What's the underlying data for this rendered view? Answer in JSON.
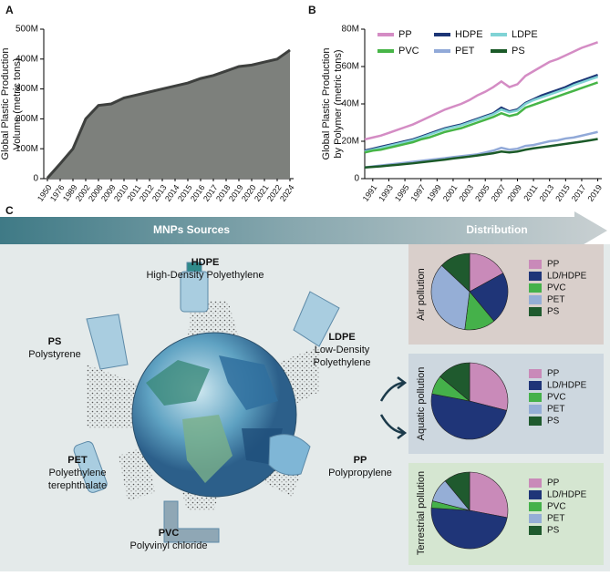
{
  "panels": [
    "A",
    "B",
    "C"
  ],
  "banner": {
    "sources": "MNPs Sources",
    "distribution": "Distribution"
  },
  "sources": [
    {
      "abbr": "HDPE",
      "name": [
        "High-Density Polyethylene"
      ]
    },
    {
      "abbr": "PS",
      "name": [
        "Polystyrene"
      ]
    },
    {
      "abbr": "LDPE",
      "name": [
        "Low-Density",
        "Polyethylene"
      ]
    },
    {
      "abbr": "PET",
      "name": [
        "Polyethylene",
        "terephthalate"
      ]
    },
    {
      "abbr": "PP",
      "name": [
        "Polypropylene"
      ]
    },
    {
      "abbr": "PVC",
      "name": [
        "Polyvinyl chloride"
      ]
    }
  ],
  "chart_data": [
    {
      "type": "area",
      "ylabel": [
        "Global Plastic Production",
        "Volume (metric tons)"
      ],
      "color": "#7d807c",
      "line_color": "#3e403e",
      "categories": [
        "1950",
        "1976",
        "1989",
        "2002",
        "2008",
        "2009",
        "2010",
        "2011",
        "2012",
        "2013",
        "2014",
        "2015",
        "2016",
        "2017",
        "2018",
        "2019",
        "2020",
        "2021",
        "2022",
        "2024"
      ],
      "values": [
        2000000,
        50000000,
        100000000,
        200000000,
        245000000,
        250000000,
        270000000,
        280000000,
        290000000,
        300000000,
        310000000,
        320000000,
        335000000,
        345000000,
        360000000,
        375000000,
        380000000,
        390000000,
        400000000,
        430000000
      ],
      "ylim": [
        0,
        500000000
      ],
      "yticks": [
        0,
        {
          "value": 100000000,
          "label": "100M"
        },
        {
          "value": 200000000,
          "label": "200M"
        },
        {
          "value": 300000000,
          "label": "300M"
        },
        {
          "value": 400000000,
          "label": "400M"
        },
        {
          "value": 500000000,
          "label": "500M"
        }
      ]
    },
    {
      "type": "line",
      "ylabel": [
        "Global Plastic Production",
        "by Polymer (metric tons)"
      ],
      "legend": "upper left",
      "x": [
        1990,
        1991,
        1992,
        1993,
        1994,
        1995,
        1996,
        1997,
        1998,
        1999,
        2000,
        2001,
        2002,
        2003,
        2004,
        2005,
        2006,
        2007,
        2008,
        2009,
        2010,
        2011,
        2012,
        2013,
        2014,
        2015,
        2016,
        2017,
        2018,
        2019
      ],
      "xlim": [
        1990,
        2019.5
      ],
      "xticks": [
        1991,
        1993,
        1995,
        1997,
        1999,
        2001,
        2003,
        2005,
        2007,
        2009,
        2011,
        2013,
        2015,
        2017,
        2019
      ],
      "ylim": [
        0,
        80000000
      ],
      "yticks": [
        0,
        {
          "value": 20000000,
          "label": "20M"
        },
        {
          "value": 40000000,
          "label": "40M"
        },
        {
          "value": 60000000,
          "label": "60M"
        },
        {
          "value": 80000000,
          "label": "80M"
        }
      ],
      "series": [
        {
          "name": "PP",
          "color": "#d48cc4",
          "values": [
            21000000,
            22000000,
            23000000,
            24500000,
            26000000,
            27500000,
            29000000,
            31000000,
            33000000,
            35000000,
            37000000,
            38500000,
            40000000,
            42000000,
            44500000,
            46500000,
            49000000,
            52000000,
            49000000,
            50500000,
            55000000,
            57500000,
            60000000,
            62500000,
            64000000,
            66000000,
            68000000,
            70000000,
            71500000,
            73000000
          ]
        },
        {
          "name": "HDPE",
          "color": "#1c3576",
          "values": [
            15000000,
            16000000,
            17000000,
            18000000,
            19000000,
            20000000,
            21000000,
            22500000,
            24000000,
            25500000,
            27000000,
            28000000,
            29000000,
            30500000,
            32000000,
            33500000,
            35000000,
            38000000,
            36000000,
            37000000,
            40500000,
            42500000,
            44500000,
            46000000,
            47500000,
            49000000,
            51000000,
            52500000,
            54000000,
            55500000
          ]
        },
        {
          "name": "LDPE",
          "color": "#80d3d5",
          "values": [
            14500000,
            15500000,
            16500000,
            17500000,
            18500000,
            19500000,
            20500000,
            22000000,
            23500000,
            25000000,
            26500000,
            27500000,
            28500000,
            30000000,
            31500000,
            33000000,
            34500000,
            37000000,
            35500000,
            36500000,
            40000000,
            42000000,
            43500000,
            45000000,
            46500000,
            48000000,
            50000000,
            51500000,
            53000000,
            54500000
          ]
        },
        {
          "name": "PVC",
          "color": "#47b547",
          "values": [
            14000000,
            15000000,
            15500000,
            16500000,
            17500000,
            18500000,
            19500000,
            21000000,
            22000000,
            23500000,
            25000000,
            26000000,
            27000000,
            28500000,
            30000000,
            31500000,
            33000000,
            35000000,
            33500000,
            34500000,
            38000000,
            39500000,
            41000000,
            42500000,
            44000000,
            45500000,
            47000000,
            48500000,
            50000000,
            51500000
          ]
        },
        {
          "name": "PET",
          "color": "#91a9d8",
          "values": [
            6000000,
            6500000,
            7000000,
            7500000,
            8000000,
            8500000,
            9000000,
            9500000,
            10000000,
            10500000,
            11000000,
            11500000,
            12000000,
            12500000,
            13000000,
            14000000,
            15000000,
            16500000,
            15500000,
            16000000,
            17500000,
            18000000,
            19000000,
            20000000,
            20500000,
            21500000,
            22000000,
            23000000,
            24000000,
            25000000
          ]
        },
        {
          "name": "PS",
          "color": "#1b5a28",
          "values": [
            6000000,
            6300000,
            6600000,
            7000000,
            7400000,
            7800000,
            8200000,
            8700000,
            9200000,
            9700000,
            10200000,
            10800000,
            11300000,
            11800000,
            12400000,
            13000000,
            13600000,
            14500000,
            14000000,
            14500000,
            15500000,
            16200000,
            16800000,
            17400000,
            18000000,
            18600000,
            19200000,
            19800000,
            20500000,
            21200000
          ]
        }
      ]
    },
    {
      "type": "pie",
      "title": "Air pollution",
      "categories": [
        "PP",
        "LD/HDPE",
        "PVC",
        "PET",
        "PS"
      ],
      "colors": [
        "#c98ab9",
        "#1f3578",
        "#45b14a",
        "#95aed6",
        "#1f5a2e"
      ],
      "values": [
        17,
        22,
        13,
        35,
        13
      ]
    },
    {
      "type": "pie",
      "title": "Aquatic pollution",
      "categories": [
        "PP",
        "LD/HDPE",
        "PVC",
        "PET",
        "PS"
      ],
      "colors": [
        "#c98ab9",
        "#1f3578",
        "#45b14a",
        "#95aed6",
        "#1f5a2e"
      ],
      "values": [
        29,
        49,
        8,
        0,
        14
      ]
    },
    {
      "type": "pie",
      "title": "Terrestrial pollution",
      "categories": [
        "PP",
        "LD/HDPE",
        "PVC",
        "PET",
        "PS"
      ],
      "colors": [
        "#c98ab9",
        "#1f3578",
        "#45b14a",
        "#95aed6",
        "#1f5a2e"
      ],
      "values": [
        28,
        48,
        3,
        10,
        11
      ]
    }
  ]
}
